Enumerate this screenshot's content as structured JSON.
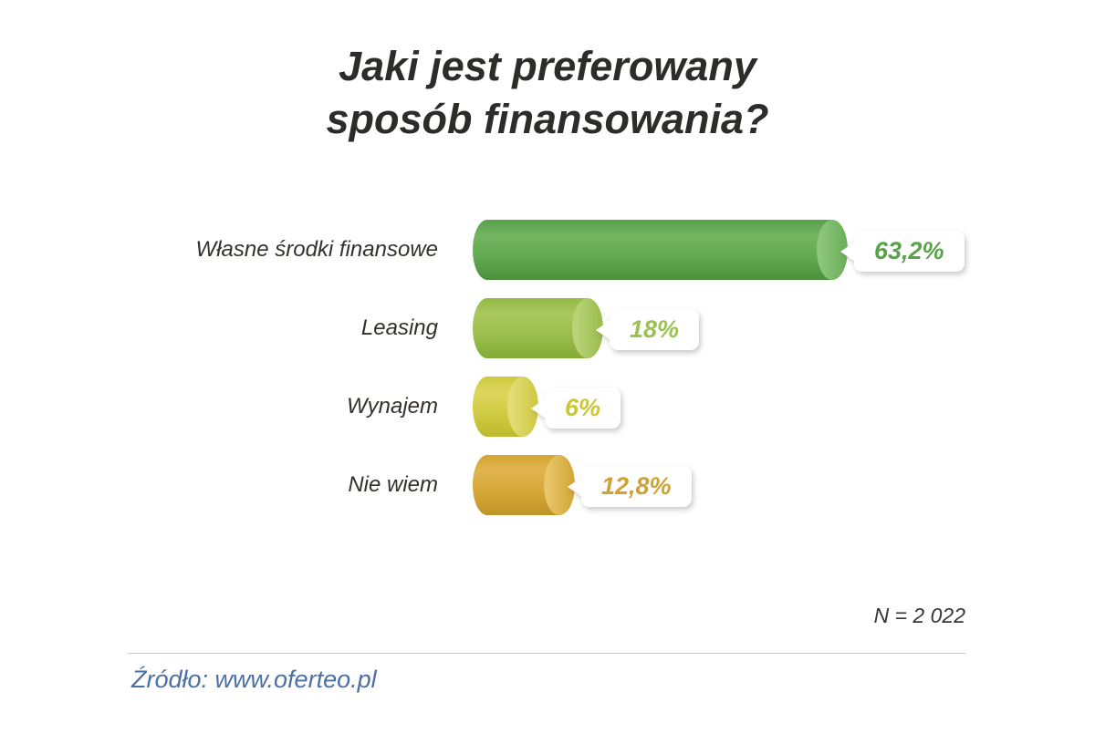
{
  "title": {
    "line1": "Jaki jest preferowany",
    "line2": "sposób finansowania?"
  },
  "footer": {
    "sample_size": "N = 2 022",
    "source": "Źródło: www.oferteo.pl"
  },
  "chart_data": {
    "type": "bar",
    "orientation": "horizontal",
    "title": "Jaki jest preferowany sposób finansowania?",
    "categories": [
      "Własne środki finansowe",
      "Leasing",
      "Wynajem",
      "Nie wiem"
    ],
    "values": [
      63.2,
      18,
      6,
      12.8
    ],
    "value_labels": [
      "63,2%",
      "18%",
      "6%",
      "12,8%"
    ],
    "xlim": [
      0,
      100
    ],
    "grid": false,
    "legend": false,
    "sample_size": "N = 2 022",
    "source": "Źródło: www.oferteo.pl",
    "bar_styles": [
      {
        "top": "#58a04a",
        "light": "#73b461",
        "mid": "#65ab54",
        "bottom": "#4b903d",
        "capLight": "#8fc67d",
        "capDark": "#6db05b",
        "text": "#58a249"
      },
      {
        "top": "#93b945",
        "light": "#a9c85e",
        "mid": "#9dbf4f",
        "bottom": "#83ab34",
        "capLight": "#bad379",
        "capDark": "#9cbf50",
        "text": "#9cc052"
      },
      {
        "top": "#ccc83d",
        "light": "#ddd65e",
        "mid": "#d2cd45",
        "bottom": "#bdb92c",
        "capLight": "#e3dd76",
        "capDark": "#d0cb47",
        "text": "#cbc636"
      },
      {
        "top": "#d3a42e",
        "light": "#e0b550",
        "mid": "#d6a938",
        "bottom": "#c09327",
        "capLight": "#e8c66b",
        "capDark": "#d5a83a",
        "text": "#d0a233"
      }
    ]
  }
}
